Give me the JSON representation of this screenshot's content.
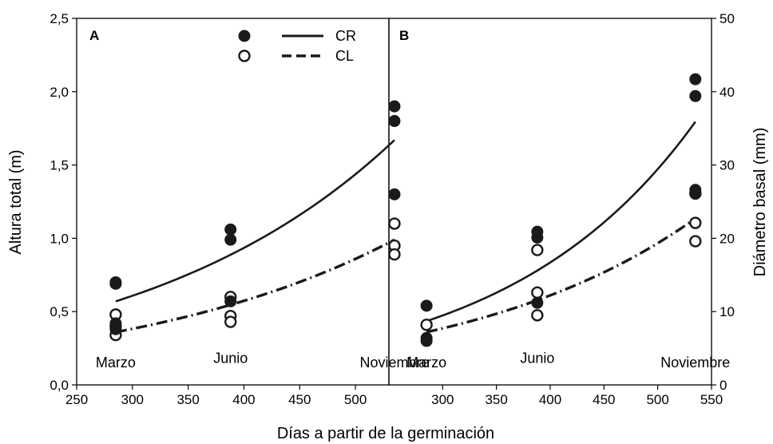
{
  "chart_data": [
    {
      "panel": "A",
      "type": "scatter",
      "xlabel": "Días a partir de la germinación",
      "ylabel": "Altura total (m)",
      "xlim": [
        250,
        530
      ],
      "ylim": [
        0,
        2.5
      ],
      "xticks": [
        "250",
        "300",
        "350",
        "400",
        "450",
        "500"
      ],
      "yticks": [
        "0,0",
        "0,5",
        "1,0",
        "1,5",
        "2,0",
        "2,5"
      ],
      "annotations": [
        {
          "text": "Marzo",
          "x": 285,
          "y": 0.12
        },
        {
          "text": "Junio",
          "x": 388,
          "y": 0.15
        },
        {
          "text": "Noviembre",
          "x": 535,
          "y": 0.12
        }
      ],
      "series": [
        {
          "name": "CR",
          "marker": "filled",
          "points": [
            [
              285,
              0.7
            ],
            [
              285,
              0.69
            ],
            [
              285,
              0.42
            ],
            [
              285,
              0.38
            ],
            [
              388,
              1.06
            ],
            [
              388,
              0.99
            ],
            [
              388,
              0.57
            ],
            [
              535,
              1.9
            ],
            [
              535,
              1.8
            ],
            [
              535,
              1.3
            ]
          ],
          "fit": {
            "x": [
              285,
              535
            ],
            "y": [
              0.57,
              1.67
            ],
            "style": "solid"
          }
        },
        {
          "name": "CL",
          "marker": "open",
          "points": [
            [
              285,
              0.48
            ],
            [
              285,
              0.4
            ],
            [
              285,
              0.34
            ],
            [
              388,
              0.6
            ],
            [
              388,
              0.47
            ],
            [
              388,
              0.43
            ],
            [
              535,
              1.1
            ],
            [
              535,
              0.95
            ],
            [
              535,
              0.89
            ]
          ],
          "fit": {
            "x": [
              285,
              535
            ],
            "y": [
              0.36,
              0.99
            ],
            "style": "dash-dot"
          }
        }
      ]
    },
    {
      "panel": "B",
      "type": "scatter",
      "xlabel": "Días a partir de la germinación",
      "ylabel": "Diámetro basal (mm)",
      "xlim": [
        250,
        550
      ],
      "ylim": [
        0,
        50
      ],
      "xticks": [
        "300",
        "350",
        "400",
        "450",
        "500",
        "550"
      ],
      "yticks": [
        "0",
        "10",
        "20",
        "30",
        "40",
        "50"
      ],
      "annotations": [
        {
          "text": "Marzo",
          "x": 285,
          "y": 2.4
        },
        {
          "text": "Junio",
          "x": 388,
          "y": 3.0
        },
        {
          "text": "Noviembre",
          "x": 535,
          "y": 2.4
        }
      ],
      "series": [
        {
          "name": "CR",
          "marker": "filled",
          "points": [
            [
              285,
              10.8
            ],
            [
              285,
              6.4
            ],
            [
              285,
              6.0
            ],
            [
              388,
              20.9
            ],
            [
              388,
              20.1
            ],
            [
              388,
              11.2
            ],
            [
              535,
              41.7
            ],
            [
              535,
              39.4
            ],
            [
              535,
              26.6
            ],
            [
              535,
              26.3
            ]
          ],
          "fit": {
            "x": [
              285,
              535
            ],
            "y": [
              8.7,
              35.9
            ],
            "style": "solid"
          }
        },
        {
          "name": "CL",
          "marker": "open",
          "points": [
            [
              285,
              8.2
            ],
            [
              388,
              18.4
            ],
            [
              388,
              12.6
            ],
            [
              388,
              9.5
            ],
            [
              535,
              26.1
            ],
            [
              535,
              22.1
            ],
            [
              535,
              19.6
            ]
          ],
          "fit": {
            "x": [
              285,
              535
            ],
            "y": [
              7.2,
              22.7
            ],
            "style": "dash-dot"
          }
        }
      ]
    }
  ],
  "legend": {
    "entries": [
      "CR",
      "CL"
    ],
    "placement": "top (panel A)"
  }
}
